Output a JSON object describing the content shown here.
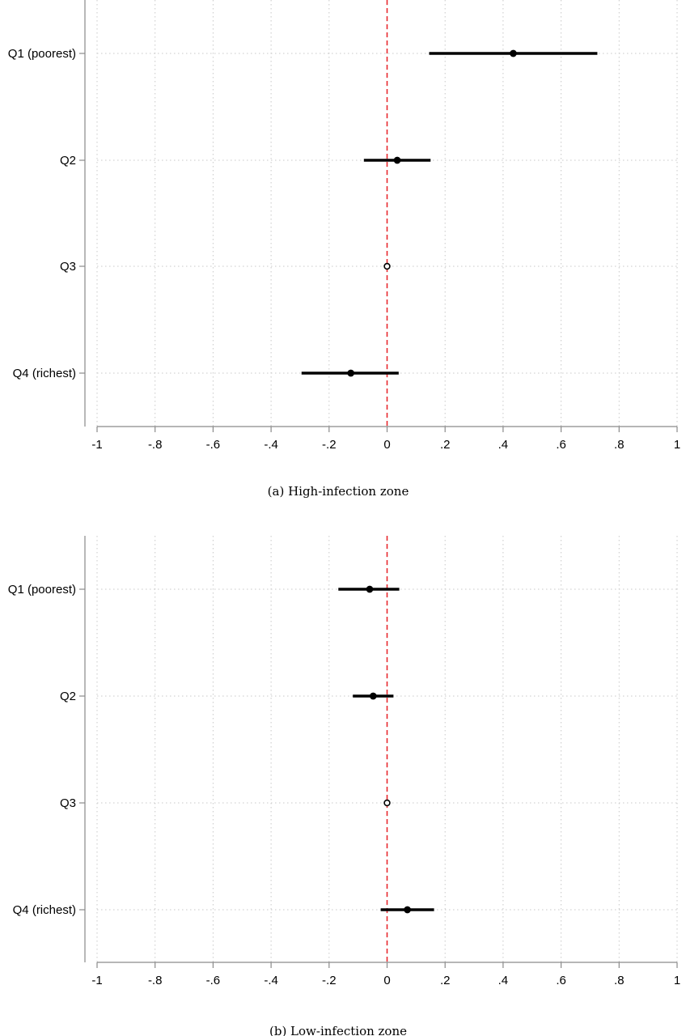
{
  "chart_data": [
    {
      "type": "coefficient-plot",
      "caption": "(a)  High-infection zone",
      "xlim": [
        -1,
        1
      ],
      "x_ticks": [
        -1,
        -0.8,
        -0.6,
        -0.4,
        -0.2,
        0,
        0.2,
        0.4,
        0.6,
        0.8,
        1
      ],
      "x_tick_labels": [
        "-1",
        "-.8",
        "-.6",
        "-.4",
        "-.2",
        "0",
        ".2",
        ".4",
        ".6",
        ".8",
        "1"
      ],
      "reference_line_x": 0,
      "reference_line_color": "#e8292e",
      "grid": true,
      "categories": [
        "Q1 (poorest)",
        "Q2",
        "Q3",
        "Q4 (richest)"
      ],
      "estimates": [
        0.435,
        0.035,
        0.0,
        -0.125
      ],
      "ci_low": [
        0.145,
        -0.08,
        null,
        -0.295
      ],
      "ci_high": [
        0.725,
        0.15,
        null,
        0.04
      ],
      "reference_category": "Q3"
    },
    {
      "type": "coefficient-plot",
      "caption": "(b)  Low-infection zone",
      "xlim": [
        -1,
        1
      ],
      "x_ticks": [
        -1,
        -0.8,
        -0.6,
        -0.4,
        -0.2,
        0,
        0.2,
        0.4,
        0.6,
        0.8,
        1
      ],
      "x_tick_labels": [
        "-1",
        "-.8",
        "-.6",
        "-.4",
        "-.2",
        "0",
        ".2",
        ".4",
        ".6",
        ".8",
        "1"
      ],
      "reference_line_x": 0,
      "reference_line_color": "#e8292e",
      "grid": true,
      "categories": [
        "Q1 (poorest)",
        "Q2",
        "Q3",
        "Q4 (richest)"
      ],
      "estimates": [
        -0.06,
        -0.048,
        0.0,
        0.07
      ],
      "ci_low": [
        -0.168,
        -0.118,
        null,
        -0.022
      ],
      "ci_high": [
        0.042,
        0.022,
        null,
        0.162
      ],
      "reference_category": "Q3"
    }
  ]
}
